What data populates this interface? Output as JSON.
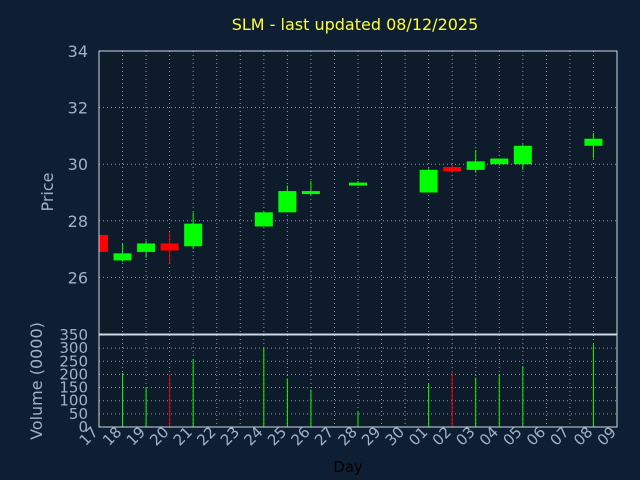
{
  "chart_data": {
    "type": "candlestick",
    "title": "SLM - last updated 08/12/2025",
    "price_axis": {
      "label": "Price",
      "ylim": [
        24,
        34
      ],
      "ticks": [
        "34",
        "32",
        "30",
        "28",
        "26"
      ]
    },
    "volume_axis": {
      "label": "Volume (0000)",
      "ylim": [
        0,
        350
      ],
      "ticks": [
        "350",
        "300",
        "250",
        "200",
        "150",
        "100",
        "50",
        "0"
      ]
    },
    "xlabel": "Day",
    "x_ticks": [
      "17",
      "18",
      "19",
      "20",
      "21",
      "22",
      "23",
      "24",
      "25",
      "26",
      "27",
      "28",
      "29",
      "30",
      "01",
      "02",
      "03",
      "04",
      "05",
      "06",
      "07",
      "08",
      "09"
    ],
    "grid": true,
    "colors": {
      "up": "#00ff00",
      "down": "#ff0000",
      "background": "#0f1f33",
      "plot_bg": "#0d1b2a",
      "title": "#ffff33",
      "text": "#9fb3c8"
    },
    "candles": [
      {
        "day": "17",
        "open": 27.5,
        "close": 26.9,
        "high": 27.5,
        "low": 26.9,
        "volume": 0
      },
      {
        "day": "18",
        "open": 26.6,
        "close": 26.85,
        "high": 27.2,
        "low": 26.55,
        "volume": 205
      },
      {
        "day": "19",
        "open": 26.9,
        "close": 27.2,
        "high": 27.3,
        "low": 26.7,
        "volume": 150
      },
      {
        "day": "20",
        "open": 27.2,
        "close": 26.95,
        "high": 27.6,
        "low": 26.5,
        "volume": 200
      },
      {
        "day": "21",
        "open": 27.1,
        "close": 27.9,
        "high": 28.3,
        "low": 27.0,
        "volume": 258
      },
      {
        "day": "24",
        "open": 27.8,
        "close": 28.3,
        "high": 28.3,
        "low": 27.8,
        "volume": 300
      },
      {
        "day": "25",
        "open": 28.3,
        "close": 29.05,
        "high": 29.25,
        "low": 28.3,
        "volume": 185
      },
      {
        "day": "26",
        "open": 28.95,
        "close": 29.05,
        "high": 29.4,
        "low": 28.9,
        "volume": 142
      },
      {
        "day": "28",
        "open": 29.25,
        "close": 29.35,
        "high": 29.4,
        "low": 29.25,
        "volume": 60
      },
      {
        "day": "01",
        "open": 29.0,
        "close": 29.8,
        "high": 29.85,
        "low": 29.0,
        "volume": 165
      },
      {
        "day": "02",
        "open": 29.9,
        "close": 29.75,
        "high": 30.0,
        "low": 29.7,
        "volume": 213
      },
      {
        "day": "03",
        "open": 29.8,
        "close": 30.1,
        "high": 30.5,
        "low": 29.7,
        "volume": 188
      },
      {
        "day": "04",
        "open": 30.0,
        "close": 30.2,
        "high": 30.2,
        "low": 29.95,
        "volume": 200
      },
      {
        "day": "05",
        "open": 30.0,
        "close": 30.65,
        "high": 30.7,
        "low": 29.8,
        "volume": 232
      },
      {
        "day": "08",
        "open": 30.65,
        "close": 30.9,
        "high": 31.1,
        "low": 30.2,
        "volume": 315
      }
    ]
  }
}
